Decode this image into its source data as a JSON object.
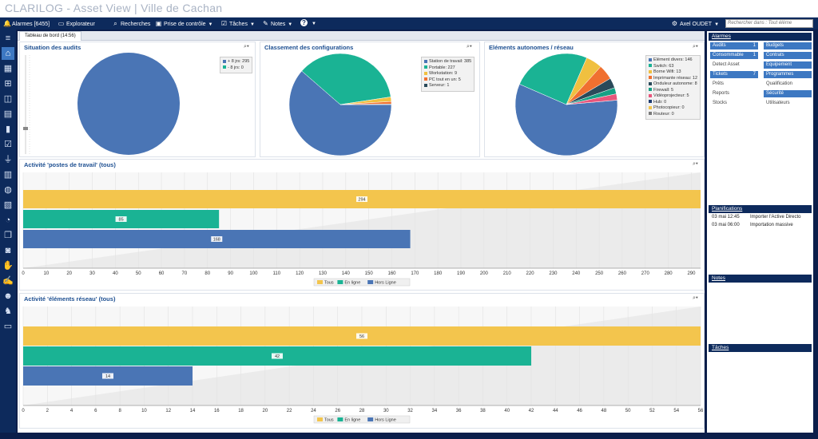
{
  "app": {
    "title": "CLARILOG - Asset View | Ville de Cachan"
  },
  "menubar": {
    "items": [
      {
        "label": "Alarmes [6455]",
        "icon": "bell-icon",
        "glyph": "🔔",
        "caret": false
      },
      {
        "label": "Explorateur",
        "icon": "folder-icon",
        "glyph": "▭",
        "caret": false
      },
      {
        "label": "Recherches",
        "icon": "search-icon",
        "glyph": "⌕",
        "caret": false
      },
      {
        "label": "Prise de contrôle",
        "icon": "remote-control-icon",
        "glyph": "▣",
        "caret": true
      },
      {
        "label": "Tâches",
        "icon": "tasks-icon",
        "glyph": "☑",
        "caret": true
      },
      {
        "label": "Notes",
        "icon": "notes-icon",
        "glyph": "✎",
        "caret": true
      },
      {
        "label": "",
        "icon": "help-icon",
        "glyph": "?",
        "caret": true
      }
    ],
    "user": {
      "label": "Axel OUDET",
      "icon": "settings-icon",
      "glyph": "⚙"
    },
    "search_placeholder": "Rechercher dans : Tout éléme"
  },
  "tab": {
    "label": "Tableau de bord  (14:56)"
  },
  "panels": {
    "audits": {
      "title": "Situation des audits"
    },
    "configs": {
      "title": "Classement des configurations"
    },
    "autonomes": {
      "title": "Eléments autonomes / réseau"
    },
    "activite_postes": {
      "title": "Activité 'postes de travail' (tous)"
    },
    "activite_reseau": {
      "title": "Activité 'éléments réseau' (tous)"
    }
  },
  "legends": {
    "audits": [
      {
        "label": "+ 8 jrs: 295",
        "color": "#4a75b5"
      },
      {
        "label": "- 8 jrs: 0",
        "color": "#1ab394"
      }
    ],
    "configs": [
      {
        "label": "Station de travail: 385",
        "color": "#4a75b5"
      },
      {
        "label": "Portable: 227",
        "color": "#1ab394"
      },
      {
        "label": "Workstation: 9",
        "color": "#f0c040"
      },
      {
        "label": "PC tout en un: 5",
        "color": "#f07030"
      },
      {
        "label": "Serveur: 1",
        "color": "#2a4a5a"
      }
    ],
    "autonomes": [
      {
        "label": "Elément divers: 146",
        "color": "#4a75b5"
      },
      {
        "label": "Switch: 63",
        "color": "#1ab394"
      },
      {
        "label": "Borne Wifi: 13",
        "color": "#f0c040"
      },
      {
        "label": "Imprimante réseau: 12",
        "color": "#f07030"
      },
      {
        "label": "Onduleur autonome: 8",
        "color": "#2a4a5a"
      },
      {
        "label": "Firewall: 5",
        "color": "#16a085"
      },
      {
        "label": "Vidéoprojecteur: 5",
        "color": "#e8567c"
      },
      {
        "label": "Hub: 0",
        "color": "#1d3b70"
      },
      {
        "label": "Photocopieur: 0",
        "color": "#f3c54d"
      },
      {
        "label": "Routeur: 0",
        "color": "#7a7a7a"
      }
    ],
    "bars": [
      {
        "label": "Tous",
        "color": "#f3c54d"
      },
      {
        "label": "En ligne",
        "color": "#1ab394"
      },
      {
        "label": "Hors Ligne",
        "color": "#4a75b5"
      }
    ]
  },
  "colors": {
    "navy": "#0d2a5c",
    "accent": "#3d78c2",
    "pie_blue": "#4a75b5",
    "teal": "#1ab394",
    "yellow": "#f3c54d"
  },
  "chart_data": [
    {
      "type": "pie",
      "title": "Situation des audits",
      "labels": [
        "+ 8 jrs",
        "- 8 jrs"
      ],
      "values": [
        295,
        0
      ],
      "colors": [
        "#4a75b5",
        "#1ab394"
      ]
    },
    {
      "type": "pie",
      "title": "Classement des configurations",
      "labels": [
        "Station de travail",
        "Portable",
        "Workstation",
        "PC tout en un",
        "Serveur"
      ],
      "values": [
        385,
        227,
        9,
        5,
        1
      ],
      "colors": [
        "#4a75b5",
        "#1ab394",
        "#f0c040",
        "#f07030",
        "#2a4a5a"
      ]
    },
    {
      "type": "pie",
      "title": "Eléments autonomes / réseau",
      "labels": [
        "Elément divers",
        "Switch",
        "Borne Wifi",
        "Imprimante réseau",
        "Onduleur autonome",
        "Firewall",
        "Vidéoprojecteur",
        "Hub",
        "Photocopieur",
        "Routeur"
      ],
      "values": [
        146,
        63,
        13,
        12,
        8,
        5,
        5,
        0,
        0,
        0
      ],
      "colors": [
        "#4a75b5",
        "#1ab394",
        "#f0c040",
        "#f07030",
        "#2a4a5a",
        "#16a085",
        "#e8567c",
        "#1d3b70",
        "#f3c54d",
        "#7a7a7a"
      ]
    },
    {
      "type": "bar",
      "orientation": "horizontal",
      "title": "Activité 'postes de travail' (tous)",
      "categories": [
        "Tous",
        "En ligne",
        "Hors Ligne"
      ],
      "values": [
        294,
        85,
        168
      ],
      "colors": [
        "#f3c54d",
        "#1ab394",
        "#4a75b5"
      ],
      "xlim": [
        0,
        294
      ],
      "xticks": [
        0,
        10,
        20,
        30,
        40,
        50,
        60,
        70,
        80,
        90,
        100,
        110,
        120,
        130,
        140,
        150,
        160,
        170,
        180,
        190,
        200,
        210,
        220,
        230,
        240,
        250,
        260,
        270,
        280,
        290
      ]
    },
    {
      "type": "bar",
      "orientation": "horizontal",
      "title": "Activité 'éléments réseau' (tous)",
      "categories": [
        "Tous",
        "En ligne",
        "Hors Ligne"
      ],
      "values": [
        56,
        42,
        14
      ],
      "colors": [
        "#f3c54d",
        "#1ab394",
        "#4a75b5"
      ],
      "xlim": [
        0,
        56
      ],
      "xticks": [
        0,
        2,
        4,
        6,
        8,
        10,
        12,
        14,
        16,
        18,
        20,
        22,
        24,
        26,
        28,
        30,
        32,
        34,
        36,
        38,
        40,
        42,
        44,
        46,
        48,
        50,
        52,
        54,
        56
      ]
    }
  ],
  "leftbar": {
    "icons": [
      "menu-icon",
      "home-icon",
      "network-icon",
      "hierarchy-icon",
      "package-icon",
      "server-icon",
      "battery-icon",
      "checklist-icon",
      "usb-icon",
      "barcode-icon",
      "globe-icon",
      "document-icon",
      "pie-icon",
      "copy-icon",
      "database-icon",
      "hand-icon",
      "contract-icon",
      "users-icon",
      "user-gear-icon",
      "window-icon"
    ],
    "glyphs": [
      "≡",
      "⌂",
      "▦",
      "⊞",
      "◫",
      "▤",
      "▮",
      "☑",
      "⏚",
      "▥",
      "◍",
      "▧",
      "◔",
      "❐",
      "◙",
      "✋",
      "✍",
      "☻",
      "♞",
      "▭"
    ]
  },
  "rightbar": {
    "alarmes_header": "Alarmes",
    "alarm_buttons": [
      {
        "label": "Audits",
        "count": "1",
        "active": true
      },
      {
        "label": "Budgets",
        "count": "",
        "active": true
      },
      {
        "label": "Consommable",
        "count": "1",
        "active": true
      },
      {
        "label": "Contrats",
        "count": "",
        "active": true
      },
      {
        "label": "Detect Asset",
        "count": "",
        "active": false
      },
      {
        "label": "Equipement",
        "count": "",
        "active": true
      },
      {
        "label": "Tickets",
        "count": "7",
        "active": true
      },
      {
        "label": "Programmes",
        "count": "",
        "active": true
      },
      {
        "label": "Prêts",
        "count": "",
        "active": false
      },
      {
        "label": "Qualification",
        "count": "",
        "active": false
      },
      {
        "label": "Reports",
        "count": "",
        "active": false
      },
      {
        "label": "Sécurité",
        "count": "",
        "active": true
      },
      {
        "label": "Stocks",
        "count": "",
        "active": false
      },
      {
        "label": "Utilisateurs",
        "count": "",
        "active": false
      }
    ],
    "planifications_header": "Planifications",
    "planifications": [
      {
        "date": "03 mai 12:45",
        "label": "Importer l'Active Directo"
      },
      {
        "date": "03 mai 06:00",
        "label": "Importation massive"
      }
    ],
    "notes_header": "Notes",
    "taches_header": "Tâches"
  }
}
